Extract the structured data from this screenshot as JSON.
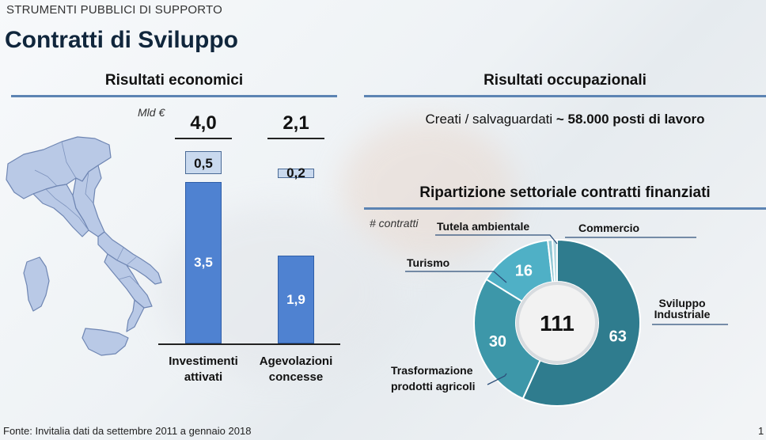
{
  "header": {
    "kicker": "STRUMENTI PUBBLICI DI SUPPORTO",
    "title": "Contratti di Sviluppo"
  },
  "left": {
    "heading": "Risultati economici",
    "unit": "Mld €"
  },
  "right": {
    "heading_jobs": "Risultati occupazionali",
    "jobs_text": "Creati / salvaguardati ",
    "jobs_value": "~ 58.000 posti di lavoro",
    "heading_sectors": "Ripartizione settoriale contratti finanziati",
    "unit": "# contratti"
  },
  "chart_data": [
    {
      "type": "bar",
      "categories": [
        "Investimenti attivati",
        "Agevolazioni concesse"
      ],
      "category_lines": [
        [
          "Investimenti",
          "attivati"
        ],
        [
          "Agevolazioni",
          "concesse"
        ]
      ],
      "series": [
        {
          "values": [
            3.5,
            1.9
          ]
        },
        {
          "values": [
            0.5,
            0.2
          ]
        }
      ],
      "totals": [
        "4,0",
        "2,1"
      ],
      "value_labels": [
        [
          "3,5",
          "1,9"
        ],
        [
          "0,5",
          "0,2"
        ]
      ],
      "ylabel": "Mld €"
    },
    {
      "type": "pie",
      "center_label": "111",
      "slices": [
        {
          "label": "Sviluppo Industriale",
          "label_lines": [
            "Sviluppo",
            "Industriale"
          ],
          "value": 63,
          "value_label": "63",
          "color": "#2f7c8e"
        },
        {
          "label": "Trasformazione prodotti agricoli",
          "label_lines": [
            "Trasformazione",
            "prodotti agricoli"
          ],
          "value": 30,
          "value_label": "30",
          "color": "#3d97a9"
        },
        {
          "label": "Turismo",
          "label_lines": [
            "Turismo"
          ],
          "value": 16,
          "value_label": "16",
          "color": "#4fb0c6"
        },
        {
          "label": "Tutela ambientale",
          "label_lines": [
            "Tutela ambientale"
          ],
          "value": 1,
          "value_label": "",
          "color": "#8fc7d4"
        },
        {
          "label": "Commercio",
          "label_lines": [
            "Commercio"
          ],
          "value": 1,
          "value_label": "",
          "color": "#b8dbe3"
        }
      ]
    }
  ],
  "footer": {
    "source": "Fonte: Invitalia dati da settembre 2011 a gennaio 2018",
    "page": "1"
  },
  "colors": {
    "map_fill": "#b9c9e6",
    "map_stroke": "#6f86b3",
    "accent_rule": "#5c84b3",
    "bar": "#4f82d1"
  }
}
